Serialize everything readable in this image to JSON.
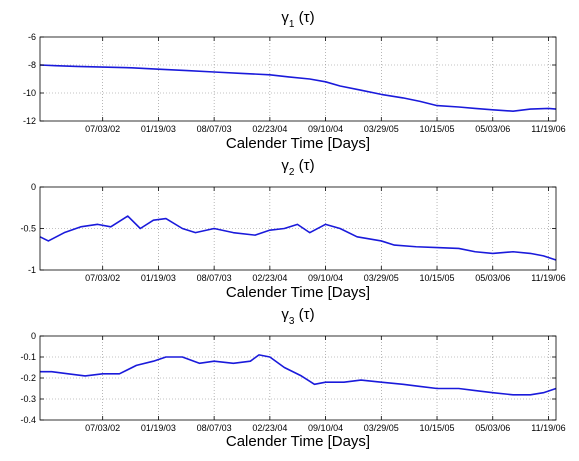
{
  "figure": {
    "xlabel": "Calender Time [Days]",
    "x_tick_labels": [
      "07/03/02",
      "01/19/03",
      "08/07/03",
      "02/23/04",
      "09/10/04",
      "03/29/05",
      "10/15/05",
      "05/03/06",
      "11/19/06"
    ],
    "line_color": "#1a1adb",
    "grid_color": "#888888",
    "background": "#ffffff"
  },
  "chart_data": [
    {
      "type": "line",
      "title": {
        "symbol": "γ",
        "subscript": "1",
        "suffix": " (τ)"
      },
      "xlabel": "Calender Time [Days]",
      "xlim": [
        "2001-11-20",
        "2006-12-16"
      ],
      "ylim": [
        -12,
        -6
      ],
      "y_ticks": [
        -12,
        -10,
        -8,
        -6
      ],
      "x_ticks": [
        "2002-07-03",
        "2003-01-19",
        "2003-08-07",
        "2004-02-23",
        "2004-09-10",
        "2005-03-29",
        "2005-10-15",
        "2006-05-03",
        "2006-11-19"
      ],
      "x_tick_labels": [
        "07/03/02",
        "01/19/03",
        "08/07/03",
        "02/23/04",
        "09/10/04",
        "03/29/05",
        "10/15/05",
        "05/03/06",
        "11/19/06"
      ],
      "grid": true,
      "series": [
        {
          "x": [
            "2001-11-20",
            "2002-01-15",
            "2002-04-01",
            "2002-07-03",
            "2002-10-15",
            "2003-01-19",
            "2003-05-01",
            "2003-08-07",
            "2003-11-15",
            "2004-02-23",
            "2004-05-01",
            "2004-07-15",
            "2004-09-10",
            "2004-11-01",
            "2005-01-15",
            "2005-03-29",
            "2005-06-15",
            "2005-08-15",
            "2005-10-15",
            "2006-01-01",
            "2006-03-01",
            "2006-05-03",
            "2006-07-15",
            "2006-09-15",
            "2006-11-19",
            "2006-12-16"
          ],
          "values": [
            -8.0,
            -8.05,
            -8.1,
            -8.15,
            -8.2,
            -8.3,
            -8.4,
            -8.5,
            -8.6,
            -8.7,
            -8.85,
            -9.0,
            -9.2,
            -9.5,
            -9.8,
            -10.1,
            -10.35,
            -10.6,
            -10.9,
            -11.0,
            -11.1,
            -11.2,
            -11.3,
            -11.15,
            -11.1,
            -11.15
          ]
        }
      ]
    },
    {
      "type": "line",
      "title": {
        "symbol": "γ",
        "subscript": "2",
        "suffix": " (τ)"
      },
      "xlabel": "Calender Time [Days]",
      "xlim": [
        "2001-11-20",
        "2006-12-16"
      ],
      "ylim": [
        -1,
        0
      ],
      "y_ticks": [
        -1,
        -0.5,
        0
      ],
      "x_ticks": [
        "2002-07-03",
        "2003-01-19",
        "2003-08-07",
        "2004-02-23",
        "2004-09-10",
        "2005-03-29",
        "2005-10-15",
        "2006-05-03",
        "2006-11-19"
      ],
      "x_tick_labels": [
        "07/03/02",
        "01/19/03",
        "08/07/03",
        "02/23/04",
        "09/10/04",
        "03/29/05",
        "10/15/05",
        "05/03/06",
        "11/19/06"
      ],
      "grid": true,
      "series": [
        {
          "x": [
            "2001-11-20",
            "2001-12-20",
            "2002-02-15",
            "2002-04-15",
            "2002-06-15",
            "2002-08-01",
            "2002-10-01",
            "2002-11-15",
            "2003-01-01",
            "2003-02-15",
            "2003-04-15",
            "2003-06-01",
            "2003-08-07",
            "2003-10-15",
            "2004-01-01",
            "2004-02-23",
            "2004-04-15",
            "2004-06-01",
            "2004-07-15",
            "2004-09-10",
            "2004-11-01",
            "2005-01-01",
            "2005-03-29",
            "2005-05-15",
            "2005-08-01",
            "2005-10-15",
            "2006-01-01",
            "2006-03-01",
            "2006-05-03",
            "2006-07-15",
            "2006-09-15",
            "2006-11-01",
            "2006-12-16"
          ],
          "values": [
            -0.6,
            -0.65,
            -0.55,
            -0.48,
            -0.45,
            -0.48,
            -0.35,
            -0.5,
            -0.4,
            -0.38,
            -0.5,
            -0.55,
            -0.5,
            -0.55,
            -0.58,
            -0.52,
            -0.5,
            -0.45,
            -0.55,
            -0.45,
            -0.5,
            -0.6,
            -0.65,
            -0.7,
            -0.72,
            -0.73,
            -0.74,
            -0.78,
            -0.8,
            -0.78,
            -0.8,
            -0.83,
            -0.88
          ]
        }
      ]
    },
    {
      "type": "line",
      "title": {
        "symbol": "γ",
        "subscript": "3",
        "suffix": " (τ)"
      },
      "xlabel": "Calender Time [Days]",
      "xlim": [
        "2001-11-20",
        "2006-12-16"
      ],
      "ylim": [
        -0.4,
        0
      ],
      "y_ticks": [
        -0.4,
        -0.3,
        -0.2,
        -0.1,
        0
      ],
      "x_ticks": [
        "2002-07-03",
        "2003-01-19",
        "2003-08-07",
        "2004-02-23",
        "2004-09-10",
        "2005-03-29",
        "2005-10-15",
        "2006-05-03",
        "2006-11-19"
      ],
      "x_tick_labels": [
        "07/03/02",
        "01/19/03",
        "08/07/03",
        "02/23/04",
        "09/10/04",
        "03/29/05",
        "10/15/05",
        "05/03/06",
        "11/19/06"
      ],
      "grid": true,
      "series": [
        {
          "x": [
            "2001-11-20",
            "2002-01-01",
            "2002-03-01",
            "2002-05-01",
            "2002-07-03",
            "2002-09-01",
            "2002-11-01",
            "2003-01-01",
            "2003-02-15",
            "2003-04-15",
            "2003-06-15",
            "2003-08-07",
            "2003-10-15",
            "2003-12-15",
            "2004-01-15",
            "2004-02-23",
            "2004-04-15",
            "2004-06-15",
            "2004-08-01",
            "2004-09-10",
            "2004-11-15",
            "2005-01-15",
            "2005-03-29",
            "2005-06-15",
            "2005-08-15",
            "2005-10-15",
            "2006-01-01",
            "2006-03-01",
            "2006-05-03",
            "2006-07-15",
            "2006-09-15",
            "2006-11-01",
            "2006-12-16"
          ],
          "values": [
            -0.17,
            -0.17,
            -0.18,
            -0.19,
            -0.18,
            -0.18,
            -0.14,
            -0.12,
            -0.1,
            -0.1,
            -0.13,
            -0.12,
            -0.13,
            -0.12,
            -0.09,
            -0.1,
            -0.15,
            -0.19,
            -0.23,
            -0.22,
            -0.22,
            -0.21,
            -0.22,
            -0.23,
            -0.24,
            -0.25,
            -0.25,
            -0.26,
            -0.27,
            -0.28,
            -0.28,
            -0.27,
            -0.25
          ]
        }
      ]
    }
  ]
}
